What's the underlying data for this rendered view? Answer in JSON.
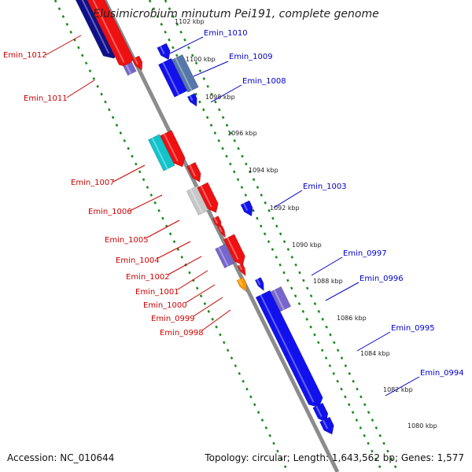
{
  "title": "Elusimicrobium minutum Pei191, complete genome",
  "footer": {
    "accession": "Accession: NC_010644",
    "summary": "Topology: circular; Length: 1,643,562 bp; Genes: 1,577"
  },
  "colors": {
    "backbone": "#8c8c8c",
    "ruler": "#1a8a1a",
    "left_label": "#cc0000",
    "right_label": "#0000cc",
    "red_feature": "#ee1111",
    "blue_feature": "#1111ee",
    "navy_feature": "#10108a",
    "purple_feature": "#7766cc",
    "steel_feature": "#5577aa",
    "cyan_feature": "#11c4cc",
    "grey_feature": "#c8c8c8",
    "orange_feature": "#ff9900"
  },
  "ticks": [
    "1102 kbp",
    "1100 kbp",
    "1098 kbp",
    "1096 kbp",
    "1094 kbp",
    "1092 kbp",
    "1090 kbp",
    "1088 kbp",
    "1086 kbp",
    "1084 kbp",
    "1082 kbp",
    "1080 kbp"
  ],
  "left_labels": [
    "Emin_1012",
    "Emin_1011",
    "Emin_1007",
    "Emin_1006",
    "Emin_1005",
    "Emin_1004",
    "Emin_1002",
    "Emin_1001",
    "Emin_1000",
    "Emin_0999",
    "Emin_0998"
  ],
  "right_labels": [
    "Emin_1010",
    "Emin_1009",
    "Emin_1008",
    "Emin_1003",
    "Emin_0997",
    "Emin_0996",
    "Emin_0995",
    "Emin_0994"
  ]
}
